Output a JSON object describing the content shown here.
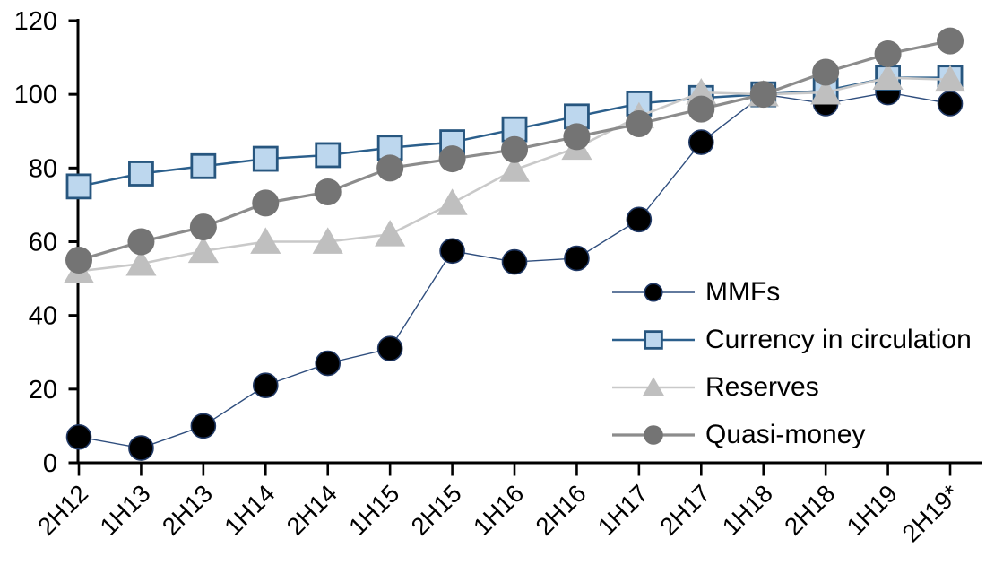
{
  "chart_data": {
    "type": "line",
    "title": "",
    "xlabel": "",
    "ylabel": "",
    "ylim": [
      0,
      120
    ],
    "ytick_step": 20,
    "ytick_labels": [
      "0",
      "20",
      "40",
      "60",
      "80",
      "100",
      "120"
    ],
    "grid": false,
    "axis_color": "#000000",
    "legend_position": "inside-right",
    "categories": [
      "2H12",
      "1H13",
      "2H13",
      "1H14",
      "2H14",
      "1H15",
      "2H15",
      "1H16",
      "2H16",
      "1H17",
      "2H17",
      "1H18",
      "2H18",
      "1H19",
      "2H19*"
    ],
    "series": [
      {
        "name": "MMFs",
        "marker": "circle",
        "marker_size": 27,
        "marker_color": "#000000",
        "marker_stroke": "#203864",
        "line_color": "#2F4E7E",
        "line_width": 1.4,
        "values": [
          7,
          4,
          10,
          21,
          27,
          31,
          57.5,
          54.5,
          55.5,
          66,
          87,
          100,
          97.5,
          100.5,
          97.5
        ]
      },
      {
        "name": "Currency in circulation",
        "marker": "square",
        "marker_size": 26,
        "marker_color": "#BDD7EE",
        "marker_stroke": "#27567F",
        "line_color": "#2B5F8C",
        "line_width": 2.5,
        "values": [
          75,
          78.5,
          80.5,
          82.5,
          83.5,
          85.5,
          87,
          90.5,
          94,
          97.5,
          99,
          100,
          101,
          104.5,
          104.5
        ]
      },
      {
        "name": "Reserves",
        "marker": "triangle",
        "marker_size": 31,
        "marker_color": "#BFBFBF",
        "marker_stroke": "none",
        "line_color": "#C9C9C9",
        "line_width": 2.6,
        "values": [
          52,
          54,
          57.5,
          60,
          60,
          62,
          70.5,
          79.5,
          85.5,
          94,
          100.5,
          100,
          100.5,
          104.5,
          104
        ]
      },
      {
        "name": "Quasi-money",
        "marker": "circle",
        "marker_size": 30,
        "marker_color": "#747474",
        "marker_stroke": "none",
        "line_color": "#8C8C8C",
        "line_width": 3.2,
        "values": [
          55,
          60,
          64,
          70.5,
          73.5,
          80,
          82.5,
          85,
          88.5,
          92,
          96,
          100,
          106,
          111,
          114.5
        ]
      }
    ]
  }
}
